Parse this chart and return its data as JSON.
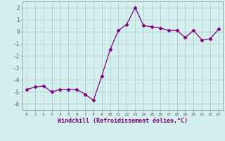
{
  "x": [
    0,
    1,
    2,
    3,
    4,
    5,
    6,
    7,
    8,
    9,
    10,
    11,
    12,
    13,
    14,
    15,
    16,
    17,
    18,
    19,
    20,
    21,
    22,
    23
  ],
  "y": [
    -4.8,
    -4.6,
    -4.5,
    -5.0,
    -4.8,
    -4.8,
    -4.8,
    -5.2,
    -5.7,
    -3.7,
    -1.5,
    0.1,
    0.6,
    2.0,
    0.5,
    0.4,
    0.3,
    0.1,
    0.1,
    -0.5,
    0.1,
    -0.7,
    -0.6,
    0.2
  ],
  "xlim": [
    -0.5,
    23.5
  ],
  "ylim": [
    -6.5,
    2.5
  ],
  "yticks": [
    -6,
    -5,
    -4,
    -3,
    -2,
    -1,
    0,
    1,
    2
  ],
  "xtick_labels": [
    "0",
    "1",
    "2",
    "3",
    "4",
    "5",
    "6",
    "7",
    "8",
    "9",
    "10",
    "11",
    "12",
    "13",
    "14",
    "15",
    "16",
    "17",
    "18",
    "19",
    "20",
    "21",
    "22",
    "23"
  ],
  "xlabel": "Windchill (Refroidissement éolien,°C)",
  "line_color": "#800080",
  "marker": "D",
  "marker_size": 2.5,
  "bg_color": "#d4f0ee",
  "grid_color": "#b0c8c8",
  "axis_color": "#888888"
}
